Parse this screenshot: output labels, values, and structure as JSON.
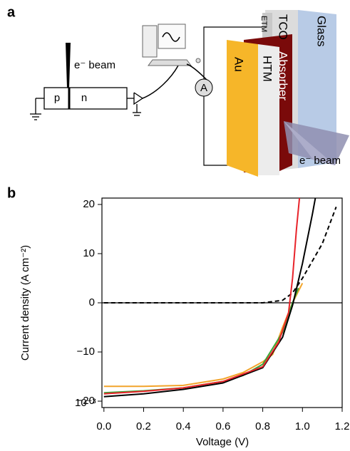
{
  "panel_labels": [
    "a",
    "b"
  ],
  "diagram": {
    "beam_label": "e⁻ beam",
    "p": "p",
    "n": "n",
    "ammeter": "A",
    "layers": [
      "Au",
      "HTM",
      "Absorber",
      "ETM",
      "TCO",
      "Glass"
    ],
    "sample_beam_label": "e⁻ beam"
  },
  "chart_data": {
    "type": "line",
    "x_label": "Voltage (V)",
    "y_label": "Current density (A cm⁻²)",
    "y_scale_annotation": "10⁻³",
    "xlim": [
      -0.01,
      1.2
    ],
    "ylim": [
      -21.3,
      21.3
    ],
    "xticks": [
      {
        "value": 0,
        "label": "0.0"
      },
      0.2,
      0.4,
      0.6,
      0.8,
      {
        "value": 1,
        "label": "1.0"
      },
      1.2
    ],
    "yticks": [
      {
        "value": -20,
        "label": "−20"
      },
      {
        "value": -10,
        "label": "−10"
      },
      0,
      10,
      20
    ],
    "hline": 0,
    "series": [
      {
        "color": "#000000",
        "dash": true,
        "x": [
          0,
          0.8,
          0.9,
          0.95,
          1.0,
          1.1,
          1.17
        ],
        "values": [
          0,
          0,
          0.5,
          2,
          5,
          12,
          19.5
        ]
      },
      {
        "color": "#f2a42b",
        "dash": false,
        "x": [
          0,
          0.2,
          0.4,
          0.6,
          0.7,
          0.8,
          0.85,
          0.9,
          0.95,
          1.0
        ],
        "values": [
          -17,
          -17,
          -16.8,
          -15.5,
          -14.2,
          -12,
          -10.5,
          -5,
          0,
          4
        ]
      },
      {
        "color": "#3aa537",
        "dash": false,
        "x": [
          0,
          0.2,
          0.4,
          0.6,
          0.7,
          0.8,
          0.9,
          0.95,
          0.98
        ],
        "values": [
          -18.3,
          -17.9,
          -17.3,
          -16,
          -14.8,
          -12.5,
          -6,
          0,
          3
        ]
      },
      {
        "color": "#000000",
        "dash": false,
        "x": [
          0,
          0.2,
          0.4,
          0.6,
          0.8,
          0.9,
          0.95,
          1.0,
          1.05,
          1.065
        ],
        "values": [
          -19.1,
          -18.5,
          -17.6,
          -16.3,
          -13.2,
          -7,
          -0.5,
          8,
          18,
          21.3
        ]
      },
      {
        "color": "#e8232a",
        "dash": false,
        "x": [
          0,
          0.2,
          0.4,
          0.6,
          0.8,
          0.88,
          0.93,
          0.95,
          0.97,
          0.985
        ],
        "values": [
          -18.5,
          -18,
          -17.3,
          -16,
          -13,
          -8,
          -2,
          5,
          15,
          21.3
        ]
      }
    ]
  }
}
